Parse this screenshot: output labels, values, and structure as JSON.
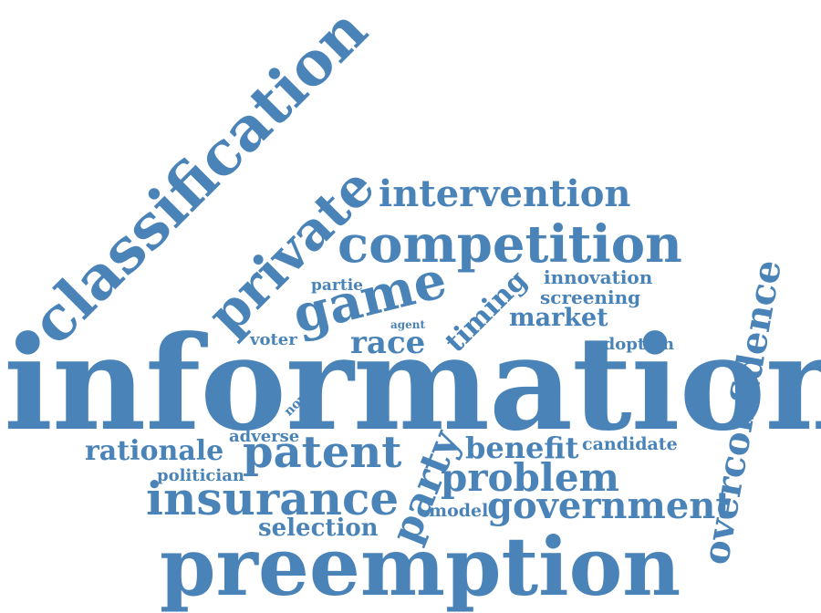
{
  "theme": {
    "word_color": "#4a83b8",
    "background": "#ffffff"
  },
  "words": {
    "information": "information",
    "preemption": "preemption",
    "classification": "classification",
    "competition": "competition",
    "intervention": "intervention",
    "private": "private",
    "insurance": "insurance",
    "patent": "patent",
    "game": "game",
    "overconfidence": "overconfidence",
    "problem": "problem",
    "government": "government",
    "rationale": "rationale",
    "race": "race",
    "timing": "timing",
    "party": "party",
    "benefit": "benefit",
    "market": "market",
    "selection": "selection",
    "innovation": "innovation",
    "screening": "screening",
    "candidate": "candidate",
    "adoption": "adoption",
    "voter": "voter",
    "politician": "politician",
    "adverse": "adverse",
    "model": "model",
    "partie": "partie",
    "agent": "agent",
    "novel": "novel"
  }
}
